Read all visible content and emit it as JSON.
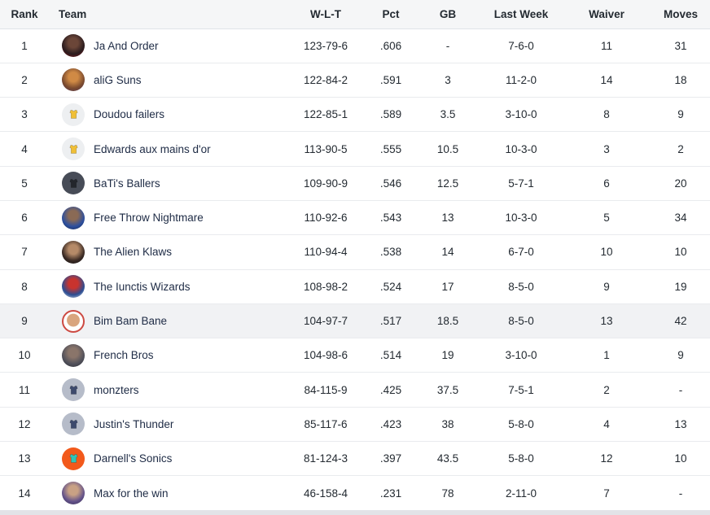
{
  "table": {
    "headers": [
      {
        "key": "rank",
        "label": "Rank"
      },
      {
        "key": "team",
        "label": "Team"
      },
      {
        "key": "wlt",
        "label": "W-L-T"
      },
      {
        "key": "pct",
        "label": "Pct"
      },
      {
        "key": "gb",
        "label": "GB"
      },
      {
        "key": "last_week",
        "label": "Last Week"
      },
      {
        "key": "waiver",
        "label": "Waiver"
      },
      {
        "key": "moves",
        "label": "Moves"
      }
    ],
    "rows": [
      {
        "rank": "1",
        "team": "Ja And Order",
        "wlt": "123-79-6",
        "pct": ".606",
        "gb": "-",
        "last_week": "7-6-0",
        "waiver": "11",
        "moves": "31",
        "highlighted": false,
        "avatar": {
          "type": "photo",
          "colors": [
            "#6b4638",
            "#2a1b1e",
            "#8e1c20"
          ]
        }
      },
      {
        "rank": "2",
        "team": "aliG Suns",
        "wlt": "122-84-2",
        "pct": ".591",
        "gb": "3",
        "last_week": "11-2-0",
        "waiver": "14",
        "moves": "18",
        "highlighted": false,
        "avatar": {
          "type": "photo",
          "colors": [
            "#d08a45",
            "#7a4a2e",
            "#4f3457"
          ]
        }
      },
      {
        "rank": "3",
        "team": "Doudou failers",
        "wlt": "122-85-1",
        "pct": ".589",
        "gb": "3.5",
        "last_week": "3-10-0",
        "waiver": "8",
        "moves": "9",
        "highlighted": false,
        "avatar": {
          "type": "jersey",
          "bg": "#edeff1",
          "jersey": "#f0bf36"
        }
      },
      {
        "rank": "4",
        "team": "Edwards aux mains d'or",
        "wlt": "113-90-5",
        "pct": ".555",
        "gb": "10.5",
        "last_week": "10-3-0",
        "waiver": "3",
        "moves": "2",
        "highlighted": false,
        "avatar": {
          "type": "jersey",
          "bg": "#edeff1",
          "jersey": "#f0bf36"
        }
      },
      {
        "rank": "5",
        "team": "BaTi's Ballers",
        "wlt": "109-90-9",
        "pct": ".546",
        "gb": "12.5",
        "last_week": "5-7-1",
        "waiver": "6",
        "moves": "20",
        "highlighted": false,
        "avatar": {
          "type": "jersey",
          "bg": "#474c57",
          "jersey": "#23262c"
        }
      },
      {
        "rank": "6",
        "team": "Free Throw Nightmare",
        "wlt": "110-92-6",
        "pct": ".543",
        "gb": "13",
        "last_week": "10-3-0",
        "waiver": "5",
        "moves": "34",
        "highlighted": false,
        "avatar": {
          "type": "photo",
          "colors": [
            "#8a6a55",
            "#2c4f9e",
            "#152347"
          ]
        }
      },
      {
        "rank": "7",
        "team": "The Alien Klaws",
        "wlt": "110-94-4",
        "pct": ".538",
        "gb": "14",
        "last_week": "6-7-0",
        "waiver": "10",
        "moves": "10",
        "highlighted": false,
        "avatar": {
          "type": "photo",
          "colors": [
            "#b58a68",
            "#3a2a24",
            "#101014"
          ]
        }
      },
      {
        "rank": "8",
        "team": "The Iunctis Wizards",
        "wlt": "108-98-2",
        "pct": ".524",
        "gb": "17",
        "last_week": "8-5-0",
        "waiver": "9",
        "moves": "19",
        "highlighted": false,
        "avatar": {
          "type": "photo",
          "colors": [
            "#c8332e",
            "#2b4d92",
            "#eceef0"
          ]
        }
      },
      {
        "rank": "9",
        "team": "Bim Bam Bane",
        "wlt": "104-97-7",
        "pct": ".517",
        "gb": "18.5",
        "last_week": "8-5-0",
        "waiver": "13",
        "moves": "42",
        "highlighted": true,
        "avatar": {
          "type": "face",
          "face": "#d9a57e",
          "bg": "#ffffff",
          "ring": "#cd4a42"
        }
      },
      {
        "rank": "10",
        "team": "French Bros",
        "wlt": "104-98-6",
        "pct": ".514",
        "gb": "19",
        "last_week": "3-10-0",
        "waiver": "1",
        "moves": "9",
        "highlighted": false,
        "avatar": {
          "type": "photo",
          "colors": [
            "#8a756a",
            "#50505a",
            "#2c2c32"
          ]
        }
      },
      {
        "rank": "11",
        "team": "monzters",
        "wlt": "84-115-9",
        "pct": ".425",
        "gb": "37.5",
        "last_week": "7-5-1",
        "waiver": "2",
        "moves": "-",
        "highlighted": false,
        "avatar": {
          "type": "jersey",
          "bg": "#b6bcc9",
          "jersey": "#3d4a6d"
        }
      },
      {
        "rank": "12",
        "team": "Justin's Thunder",
        "wlt": "85-117-6",
        "pct": ".423",
        "gb": "38",
        "last_week": "5-8-0",
        "waiver": "4",
        "moves": "13",
        "highlighted": false,
        "avatar": {
          "type": "jersey",
          "bg": "#b6bcc9",
          "jersey": "#3d4a6d"
        }
      },
      {
        "rank": "13",
        "team": "Darnell's Sonics",
        "wlt": "81-124-3",
        "pct": ".397",
        "gb": "43.5",
        "last_week": "5-8-0",
        "waiver": "12",
        "moves": "10",
        "highlighted": false,
        "avatar": {
          "type": "jersey",
          "bg": "#f2591b",
          "jersey": "#2fc4b8"
        }
      },
      {
        "rank": "14",
        "team": "Max for the win",
        "wlt": "46-158-4",
        "pct": ".231",
        "gb": "78",
        "last_week": "2-11-0",
        "waiver": "7",
        "moves": "-",
        "highlighted": false,
        "avatar": {
          "type": "photo",
          "colors": [
            "#c9a184",
            "#63528a",
            "#352c4e"
          ]
        }
      }
    ]
  },
  "colors": {
    "header_bg": "#f5f6f7",
    "row_border": "#e9ebee",
    "highlight_row_bg": "#f1f2f4",
    "text": "#232a31",
    "team_link": "#1e2b45",
    "footer_strip": "#e2e3e7"
  }
}
